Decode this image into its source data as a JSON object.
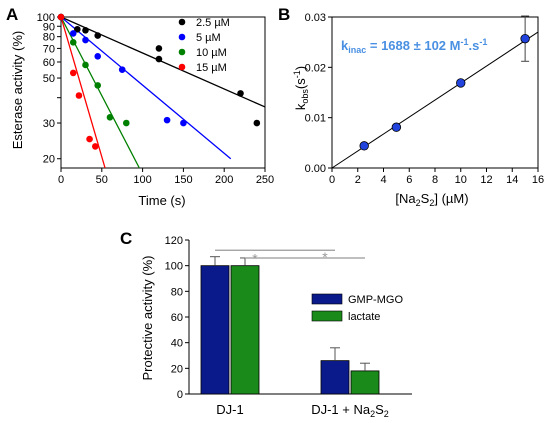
{
  "figure": {
    "panel_a_label": "A",
    "panel_b_label": "B",
    "panel_c_label": "C"
  },
  "chart_data": [
    {
      "panel": "A",
      "type": "scatter",
      "xlabel": "Time (s)",
      "ylabel": "Esterase activity (%)",
      "yscale": "log",
      "xlim": [
        0,
        250
      ],
      "ylim": [
        18,
        100
      ],
      "xticks": [
        0,
        50,
        100,
        150,
        200,
        250
      ],
      "yticks": [
        20,
        30,
        40,
        50,
        60,
        70,
        80,
        90,
        100
      ],
      "ytick_labels": [
        "20",
        "30",
        "",
        "50",
        "60",
        "70",
        "80",
        "90",
        "100"
      ],
      "legend_position": "top-right",
      "series": [
        {
          "name": "2.5 µM",
          "color": "#000000",
          "x": [
            0,
            20,
            30,
            45,
            120,
            120,
            220,
            240
          ],
          "y": [
            100,
            87,
            86,
            81,
            70,
            62,
            42,
            30
          ],
          "fit": [
            [
              0,
              100
            ],
            [
              250,
              36
            ]
          ]
        },
        {
          "name": "5 µM",
          "color": "#0000ff",
          "x": [
            0,
            15,
            30,
            45,
            75,
            130,
            150
          ],
          "y": [
            100,
            83,
            77,
            64,
            55,
            31,
            30
          ],
          "fit": [
            [
              0,
              100
            ],
            [
              208,
              20
            ]
          ]
        },
        {
          "name": "10 µM",
          "color": "#008000",
          "x": [
            0,
            15,
            30,
            45,
            60,
            80
          ],
          "y": [
            100,
            75,
            58,
            46,
            32,
            30
          ],
          "fit": [
            [
              0,
              100
            ],
            [
              96,
              18
            ]
          ]
        },
        {
          "name": "15 µM",
          "color": "#ff0000",
          "x": [
            0,
            15,
            22,
            35,
            42
          ],
          "y": [
            100,
            53,
            41,
            25,
            23
          ],
          "fit": [
            [
              0,
              100
            ],
            [
              54,
              18
            ]
          ]
        }
      ]
    },
    {
      "panel": "B",
      "type": "scatter",
      "xlabel": "[Na2S2] (µM)",
      "ylabel": "kobs(s-1)",
      "xlim": [
        0,
        16
      ],
      "ylim": [
        0,
        0.03
      ],
      "xticks": [
        0,
        2,
        4,
        6,
        8,
        10,
        12,
        14,
        16
      ],
      "yticks": [
        0.0,
        0.01,
        0.02,
        0.03
      ],
      "ytick_labels": [
        "0.00",
        "0.01",
        "0.02",
        "0.03"
      ],
      "annotation": "kinac = 1688 ± 102 M-1.s-1",
      "color": "#2244dd",
      "x": [
        2.5,
        5,
        10,
        15
      ],
      "y": [
        0.0044,
        0.0081,
        0.0169,
        0.0257
      ],
      "yerr": [
        0.0003,
        0.0003,
        0.0004,
        0.0045
      ],
      "fit": [
        [
          0,
          0
        ],
        [
          16,
          0.027
        ]
      ]
    },
    {
      "panel": "C",
      "type": "bar",
      "xlabel": "",
      "ylabel": "Protective activity (%)",
      "ylim": [
        0,
        120
      ],
      "yticks": [
        0,
        20,
        40,
        60,
        80,
        100,
        120
      ],
      "categories": [
        "DJ-1",
        "DJ-1 + Na2S2"
      ],
      "legend_position": "right",
      "significance": [
        "*",
        "*"
      ],
      "series": [
        {
          "name": "GMP-MGO",
          "color": "#0a1a8a",
          "values": [
            100,
            26
          ],
          "errors": [
            7,
            10
          ]
        },
        {
          "name": "lactate",
          "color": "#1a8a1a",
          "values": [
            100,
            18
          ],
          "errors": [
            6,
            6
          ]
        }
      ]
    }
  ]
}
